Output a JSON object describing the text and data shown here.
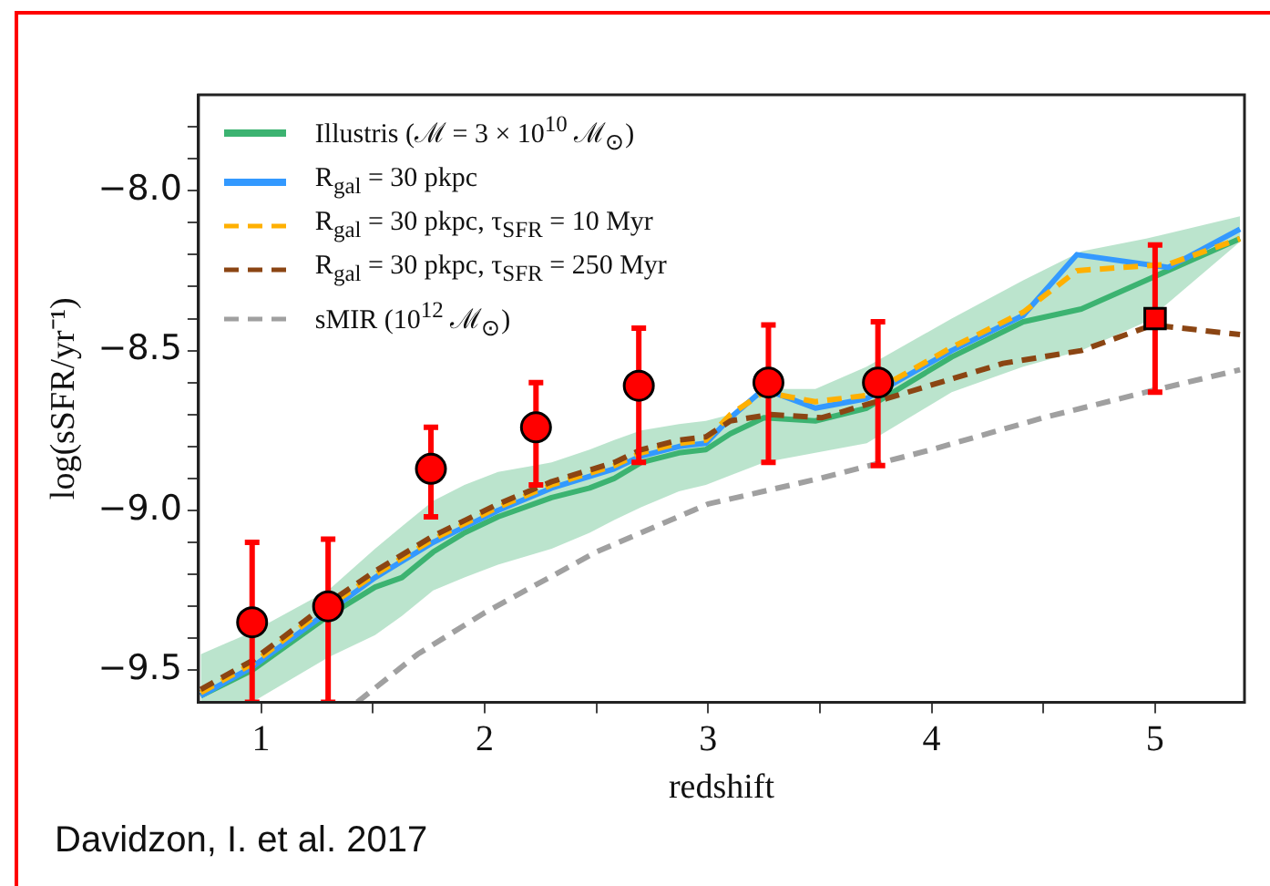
{
  "chart_data": {
    "type": "line",
    "xlabel": "redshift",
    "ylabel": "log(sSFR/yr⁻¹)",
    "xlim": [
      0.72,
      5.4
    ],
    "ylim": [
      -9.6,
      -7.7
    ],
    "xticks": [
      {
        "value": 1,
        "label": "1"
      },
      {
        "value": 1.5,
        "label": null
      },
      {
        "value": 2,
        "label": "2"
      },
      {
        "value": 2.5,
        "label": null
      },
      {
        "value": 3,
        "label": "3"
      },
      {
        "value": 3.5,
        "label": null
      },
      {
        "value": 4,
        "label": "4"
      },
      {
        "value": 4.5,
        "label": null
      },
      {
        "value": 5,
        "label": "5"
      }
    ],
    "yticks": [
      {
        "value": -9.5,
        "label": "−9.5"
      },
      {
        "value": -9.4,
        "label": null
      },
      {
        "value": -9.3,
        "label": null
      },
      {
        "value": -9.2,
        "label": null
      },
      {
        "value": -9.1,
        "label": null
      },
      {
        "value": -9,
        "label": "−9.0"
      },
      {
        "value": -8.9,
        "label": null
      },
      {
        "value": -8.8,
        "label": null
      },
      {
        "value": -8.7,
        "label": null
      },
      {
        "value": -8.6,
        "label": null
      },
      {
        "value": -8.5,
        "label": "−8.5"
      },
      {
        "value": -8.4,
        "label": null
      },
      {
        "value": -8.3,
        "label": null
      },
      {
        "value": -8.2,
        "label": null
      },
      {
        "value": -8.1,
        "label": null
      },
      {
        "value": -8,
        "label": "−8.0"
      },
      {
        "value": -7.9,
        "label": null
      },
      {
        "value": -7.8,
        "label": null
      }
    ],
    "grid": false,
    "legend": "top left",
    "marker": "none",
    "annotations": [
      "Davidzon, I. et al. 2017"
    ],
    "series": [
      {
        "name": "Illustris (ℳ = 3 × 10$^{10}$ ℳ$_{⊙}$)",
        "color": "#3cb371",
        "line_style": "solid",
        "x": [
          0.73,
          0.96,
          1.3,
          1.51,
          1.63,
          1.77,
          1.91,
          2.06,
          2.3,
          2.47,
          2.58,
          2.7,
          2.87,
          2.99,
          3.1,
          3.25,
          3.48,
          3.71,
          4.09,
          4.41,
          4.67,
          4.96,
          5.38
        ],
        "values": [
          -9.58,
          -9.5,
          -9.33,
          -9.24,
          -9.21,
          -9.13,
          -9.07,
          -9.02,
          -8.96,
          -8.93,
          -8.9,
          -8.85,
          -8.82,
          -8.81,
          -8.76,
          -8.71,
          -8.72,
          -8.68,
          -8.52,
          -8.41,
          -8.37,
          -8.28,
          -8.15
        ],
        "lower": [
          -9.6,
          -9.6,
          -9.46,
          -9.39,
          -9.33,
          -9.25,
          -9.21,
          -9.17,
          -9.12,
          -9.07,
          -9.03,
          -8.99,
          -8.94,
          -8.92,
          -8.89,
          -8.85,
          -8.82,
          -8.79,
          -8.63,
          -8.55,
          -8.5,
          -8.41,
          -8.16
        ],
        "upper": [
          -9.45,
          -9.38,
          -9.25,
          -9.12,
          -9.05,
          -8.97,
          -8.92,
          -8.88,
          -8.85,
          -8.81,
          -8.78,
          -8.75,
          -8.73,
          -8.72,
          -8.7,
          -8.62,
          -8.62,
          -8.55,
          -8.4,
          -8.28,
          -8.19,
          -8.15,
          -8.08
        ]
      },
      {
        "name": "R$_{gal}$ = 30 pkpc",
        "color": "#3399ff",
        "line_style": "solid",
        "x": [
          0.73,
          0.96,
          1.3,
          1.51,
          1.77,
          2.06,
          2.3,
          2.58,
          2.7,
          2.87,
          2.99,
          3.1,
          3.25,
          3.48,
          3.71,
          4.09,
          4.41,
          4.65,
          5.06,
          5.38
        ],
        "values": [
          -9.58,
          -9.49,
          null,
          -9.21,
          -9.1,
          -9.0,
          -8.93,
          -8.87,
          -8.83,
          -8.8,
          -8.79,
          -8.71,
          -8.62,
          -8.68,
          -8.65,
          -8.5,
          -8.39,
          -8.2,
          -8.24,
          -8.12
        ]
      },
      {
        "name": "R$_{gal}$ = 30 pkpc, τ$_{SFR}$ = 10 Myr",
        "color": "#ffb000",
        "line_style": "dashed",
        "x": [
          0.73,
          0.96,
          1.3,
          1.51,
          1.77,
          2.06,
          2.3,
          2.58,
          2.7,
          2.87,
          2.99,
          3.1,
          3.25,
          3.48,
          3.71,
          4.09,
          4.41,
          4.65,
          5.06,
          5.38
        ],
        "values": [
          -9.57,
          -9.48,
          -9.3,
          -9.2,
          -9.09,
          -8.99,
          -8.92,
          -8.86,
          -8.82,
          -8.79,
          -8.78,
          -8.7,
          -8.63,
          -8.66,
          -8.64,
          -8.49,
          -8.38,
          -8.25,
          -8.23,
          -8.15
        ]
      },
      {
        "name": "R$_{gal}$ = 30 pkpc, τ$_{SFR}$ = 250 Myr",
        "color": "#8b4513",
        "line_style": "dashed",
        "x": [
          0.73,
          0.96,
          1.3,
          1.51,
          1.77,
          2.06,
          2.3,
          2.58,
          2.7,
          2.87,
          2.99,
          3.1,
          3.28,
          3.51,
          3.8,
          4.32,
          4.67,
          4.99,
          5.38
        ],
        "values": [
          -9.56,
          -9.47,
          -9.29,
          -9.19,
          -9.08,
          -8.98,
          -8.91,
          -8.85,
          -8.81,
          -8.78,
          -8.77,
          -8.72,
          -8.7,
          -8.71,
          -8.65,
          -8.54,
          -8.5,
          -8.42,
          -8.45
        ]
      },
      {
        "name": "sMIR (10$^{12}$ ℳ$_{⊙}$)",
        "color": "#a0a0a0",
        "line_style": "dashed",
        "x": [
          1.43,
          1.7,
          2.0,
          2.5,
          3.0,
          3.5,
          4.0,
          4.5,
          4.96,
          5.38
        ],
        "values": [
          -9.6,
          -9.45,
          -9.32,
          -9.13,
          -8.98,
          -8.9,
          -8.81,
          -8.71,
          -8.63,
          -8.56
        ]
      },
      {
        "type": "scatter",
        "marker": "circle",
        "color": "#ff0000",
        "x": [
          0.96,
          1.3,
          1.76
        ],
        "values": [
          -9.35,
          -9.3,
          -8.87
        ],
        "errors": [
          [
            -9.6,
            -9.1
          ],
          [
            -9.6,
            -9.09
          ],
          [
            -9.02,
            -8.74
          ]
        ]
      },
      {
        "type": "scatter",
        "marker": "circle",
        "color": "#ff0000",
        "x": [
          2.23,
          2.69,
          3.27,
          3.76
        ],
        "values": [
          -8.74,
          -8.61,
          -8.6,
          -8.6
        ],
        "errors": [
          [
            -8.92,
            -8.6
          ],
          [
            -8.85,
            -8.43
          ],
          [
            -8.85,
            -8.42
          ],
          [
            -8.86,
            -8.41
          ]
        ]
      },
      {
        "type": "scatter",
        "marker": "square",
        "color": "#ff0000",
        "x": [
          5.0
        ],
        "values": [
          -8.4
        ],
        "errors": [
          [
            -8.63,
            -8.17
          ]
        ]
      }
    ]
  }
}
